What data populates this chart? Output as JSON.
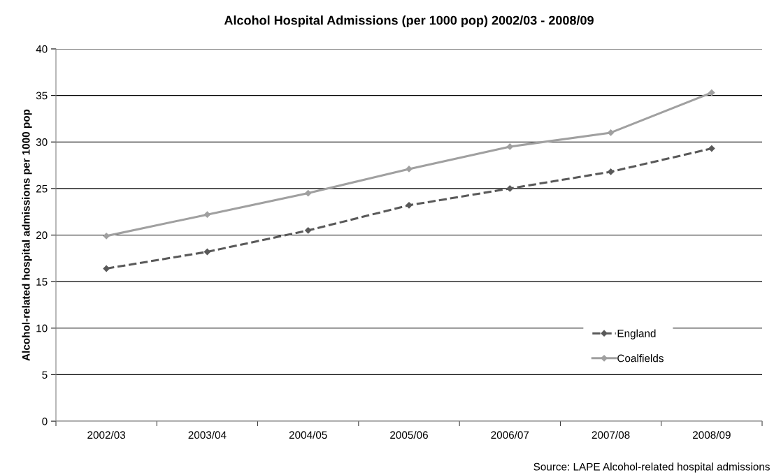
{
  "chart_data": {
    "type": "line",
    "title": "Alcohol Hospital Admissions (per 1000 pop) 2002/03 - 2008/09",
    "ylabel": "Alcohol-related hospital admissions per 1000 pop",
    "categories": [
      "2002/03",
      "2003/04",
      "2004/05",
      "2005/06",
      "2006/07",
      "2007/08",
      "2008/09"
    ],
    "series": [
      {
        "name": "England",
        "color": "#595959",
        "line_style": "dashed",
        "values": [
          16.4,
          18.2,
          20.5,
          23.2,
          25.0,
          26.8,
          29.3
        ]
      },
      {
        "name": "Coalfields",
        "color": "#a0a0a0",
        "line_style": "solid",
        "values": [
          19.9,
          22.2,
          24.5,
          27.1,
          29.5,
          31.0,
          35.3
        ]
      }
    ],
    "ylim": [
      0,
      40
    ],
    "yticks": [
      0,
      5,
      10,
      15,
      20,
      25,
      30,
      35,
      40
    ],
    "grid": "y",
    "legend": "right",
    "marker": "diamond",
    "annotations": [
      "Source: LAPE Alcohol-related hospital admissions"
    ]
  }
}
